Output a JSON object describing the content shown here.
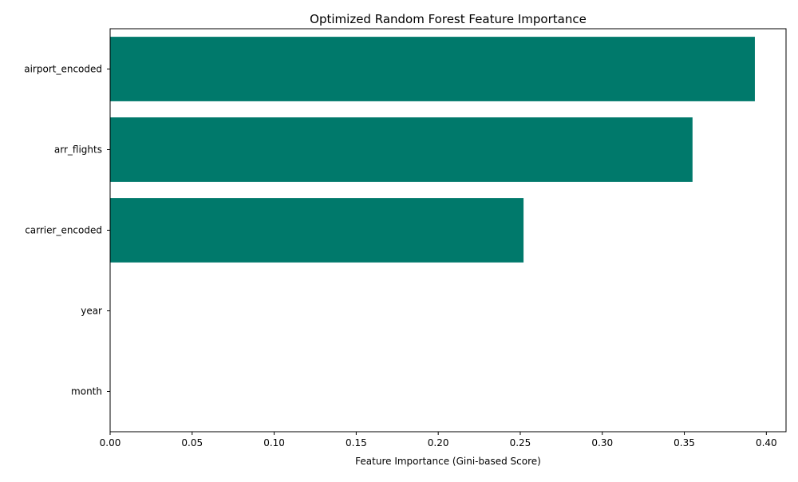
{
  "chart_data": {
    "type": "bar",
    "orientation": "horizontal",
    "title": "Optimized Random Forest Feature Importance",
    "xlabel": "Feature Importance (Gini-based Score)",
    "ylabel": "",
    "categories": [
      "airport_encoded",
      "arr_flights",
      "carrier_encoded",
      "year",
      "month"
    ],
    "values": [
      0.393,
      0.355,
      0.252,
      0.0,
      0.0
    ],
    "xlim": [
      0,
      0.412
    ],
    "xticks": [
      0.0,
      0.05,
      0.1,
      0.15,
      0.2,
      0.25,
      0.3,
      0.35,
      0.4
    ],
    "xtick_labels": [
      "0.00",
      "0.05",
      "0.10",
      "0.15",
      "0.20",
      "0.25",
      "0.30",
      "0.35",
      "0.40"
    ],
    "bar_color": "#00796b",
    "grid": false,
    "legend": "none"
  }
}
